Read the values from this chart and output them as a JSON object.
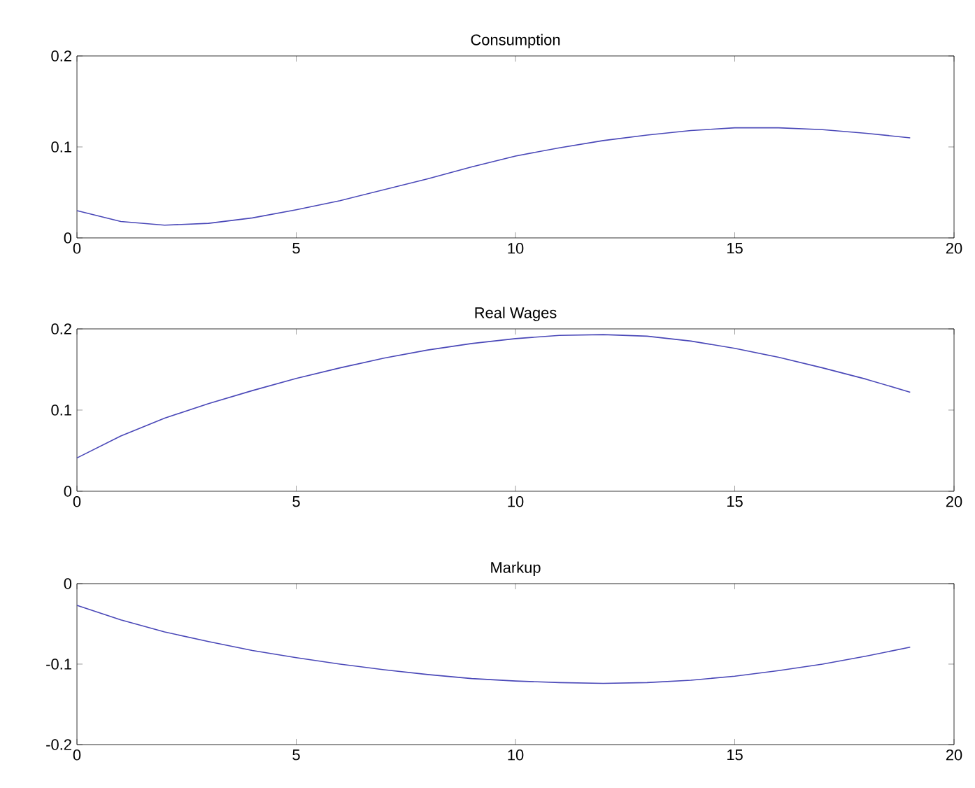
{
  "chart_data": [
    {
      "type": "line",
      "title": "Consumption",
      "x": [
        0,
        1,
        2,
        3,
        4,
        5,
        6,
        7,
        8,
        9,
        10,
        11,
        12,
        13,
        14,
        15,
        16,
        17,
        18,
        19
      ],
      "values": [
        0.03,
        0.018,
        0.014,
        0.016,
        0.022,
        0.031,
        0.041,
        0.053,
        0.065,
        0.078,
        0.09,
        0.099,
        0.107,
        0.113,
        0.118,
        0.121,
        0.121,
        0.119,
        0.115,
        0.11
      ],
      "color": "#4a48b8",
      "xlim": [
        0,
        20
      ],
      "xticks": [
        0,
        5,
        10,
        15,
        20
      ],
      "ylim": [
        0,
        0.2
      ],
      "yticks": [
        0,
        0.1,
        0.2
      ]
    },
    {
      "type": "line",
      "title": "Real Wages",
      "x": [
        0,
        1,
        2,
        3,
        4,
        5,
        6,
        7,
        8,
        9,
        10,
        11,
        12,
        13,
        14,
        15,
        16,
        17,
        18,
        19
      ],
      "values": [
        0.041,
        0.068,
        0.09,
        0.108,
        0.124,
        0.139,
        0.152,
        0.164,
        0.174,
        0.182,
        0.188,
        0.192,
        0.193,
        0.191,
        0.185,
        0.176,
        0.165,
        0.152,
        0.138,
        0.122
      ],
      "color": "#4a48b8",
      "xlim": [
        0,
        20
      ],
      "xticks": [
        0,
        5,
        10,
        15,
        20
      ],
      "ylim": [
        0,
        0.2
      ],
      "yticks": [
        0,
        0.1,
        0.2
      ]
    },
    {
      "type": "line",
      "title": "Markup",
      "x": [
        0,
        1,
        2,
        3,
        4,
        5,
        6,
        7,
        8,
        9,
        10,
        11,
        12,
        13,
        14,
        15,
        16,
        17,
        18,
        19
      ],
      "values": [
        -0.027,
        -0.045,
        -0.06,
        -0.072,
        -0.083,
        -0.092,
        -0.1,
        -0.107,
        -0.113,
        -0.118,
        -0.121,
        -0.123,
        -0.124,
        -0.123,
        -0.12,
        -0.115,
        -0.108,
        -0.1,
        -0.09,
        -0.079
      ],
      "color": "#4a48b8",
      "xlim": [
        0,
        20
      ],
      "xticks": [
        0,
        5,
        10,
        15,
        20
      ],
      "ylim": [
        -0.2,
        0
      ],
      "yticks": [
        -0.2,
        -0.1,
        0
      ]
    }
  ]
}
